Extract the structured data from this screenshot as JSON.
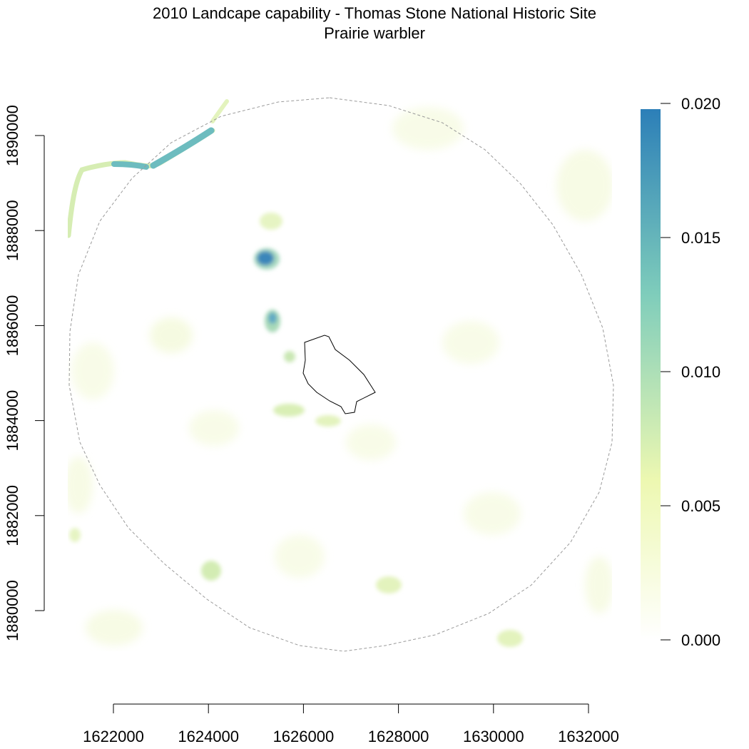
{
  "title": "2010 Landcape capability - Thomas Stone National Historic Site",
  "subtitle": "Prairie warbler",
  "colors": {
    "scale_low": "#ffffff",
    "scale_mid_low": "#edf8b1",
    "scale_mid": "#7fcdbb",
    "scale_high": "#2c7fb8",
    "boundary_dashed": "#9a9a9a",
    "park_outline": "#000000"
  },
  "x_axis": {
    "ticks": [
      1622000,
      1624000,
      1626000,
      1628000,
      1630000,
      1632000
    ],
    "labels": [
      "1622000",
      "1624000",
      "1626000",
      "1628000",
      "1630000",
      "1632000"
    ]
  },
  "y_axis": {
    "ticks": [
      1880000,
      1882000,
      1884000,
      1886000,
      1888000,
      1890000
    ],
    "labels": [
      "1880000",
      "1882000",
      "1884000",
      "1886000",
      "1888000",
      "1890000"
    ]
  },
  "legend": {
    "ticks": [
      0,
      0.005,
      0.01,
      0.015,
      0.02
    ],
    "labels": [
      "0.000",
      "0.005",
      "0.010",
      "0.015",
      "0.020"
    ]
  }
}
